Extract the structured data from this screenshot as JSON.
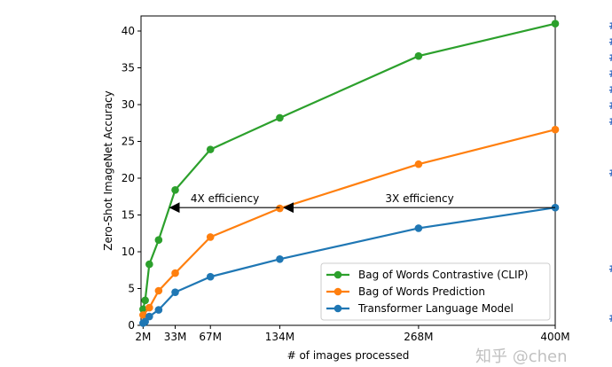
{
  "chart_data": {
    "type": "line",
    "title": "",
    "xlabel": "# of images processed",
    "ylabel": "Zero-Shot ImageNet Accuracy",
    "xlim": [
      0,
      400
    ],
    "ylim": [
      0,
      42
    ],
    "xticks": [
      2,
      33,
      67,
      134,
      268,
      400
    ],
    "xtick_labels": [
      "2M",
      "33M",
      "67M",
      "134M",
      "268M",
      "400M"
    ],
    "yticks": [
      0,
      5,
      10,
      15,
      20,
      25,
      30,
      35,
      40
    ],
    "grid": false,
    "legend_placement": "lower-right",
    "series": [
      {
        "name": "Bag of Words Contrastive (CLIP)",
        "color": "#2ca02c",
        "x": [
          2,
          4,
          8,
          17,
          33,
          67,
          134,
          268,
          400
        ],
        "y": [
          2.2,
          3.4,
          8.3,
          11.6,
          18.4,
          23.9,
          28.2,
          36.6,
          41.0
        ]
      },
      {
        "name": "Bag of Words Prediction",
        "color": "#ff7f0e",
        "x": [
          2,
          8,
          17,
          33,
          67,
          134,
          268,
          400
        ],
        "y": [
          1.4,
          2.4,
          4.7,
          7.1,
          12.0,
          15.9,
          21.9,
          26.6
        ]
      },
      {
        "name": "Transformer Language Model",
        "color": "#1f77b4",
        "x": [
          2,
          4,
          8,
          17,
          33,
          67,
          134,
          268,
          400
        ],
        "y": [
          0.3,
          0.5,
          1.2,
          2.1,
          4.5,
          6.6,
          9.0,
          13.2,
          16.0
        ]
      }
    ],
    "annotations": [
      {
        "text": "4X efficiency",
        "from_x": 134,
        "to_x": 28,
        "y": 16
      },
      {
        "text": "3X efficiency",
        "from_x": 400,
        "to_x": 138,
        "y": 16
      }
    ]
  },
  "watermark": "知乎 @chen",
  "side_glyphs": [
    "#",
    "#",
    "#",
    "#",
    "#",
    "#",
    "#",
    "#",
    "#",
    "#"
  ]
}
